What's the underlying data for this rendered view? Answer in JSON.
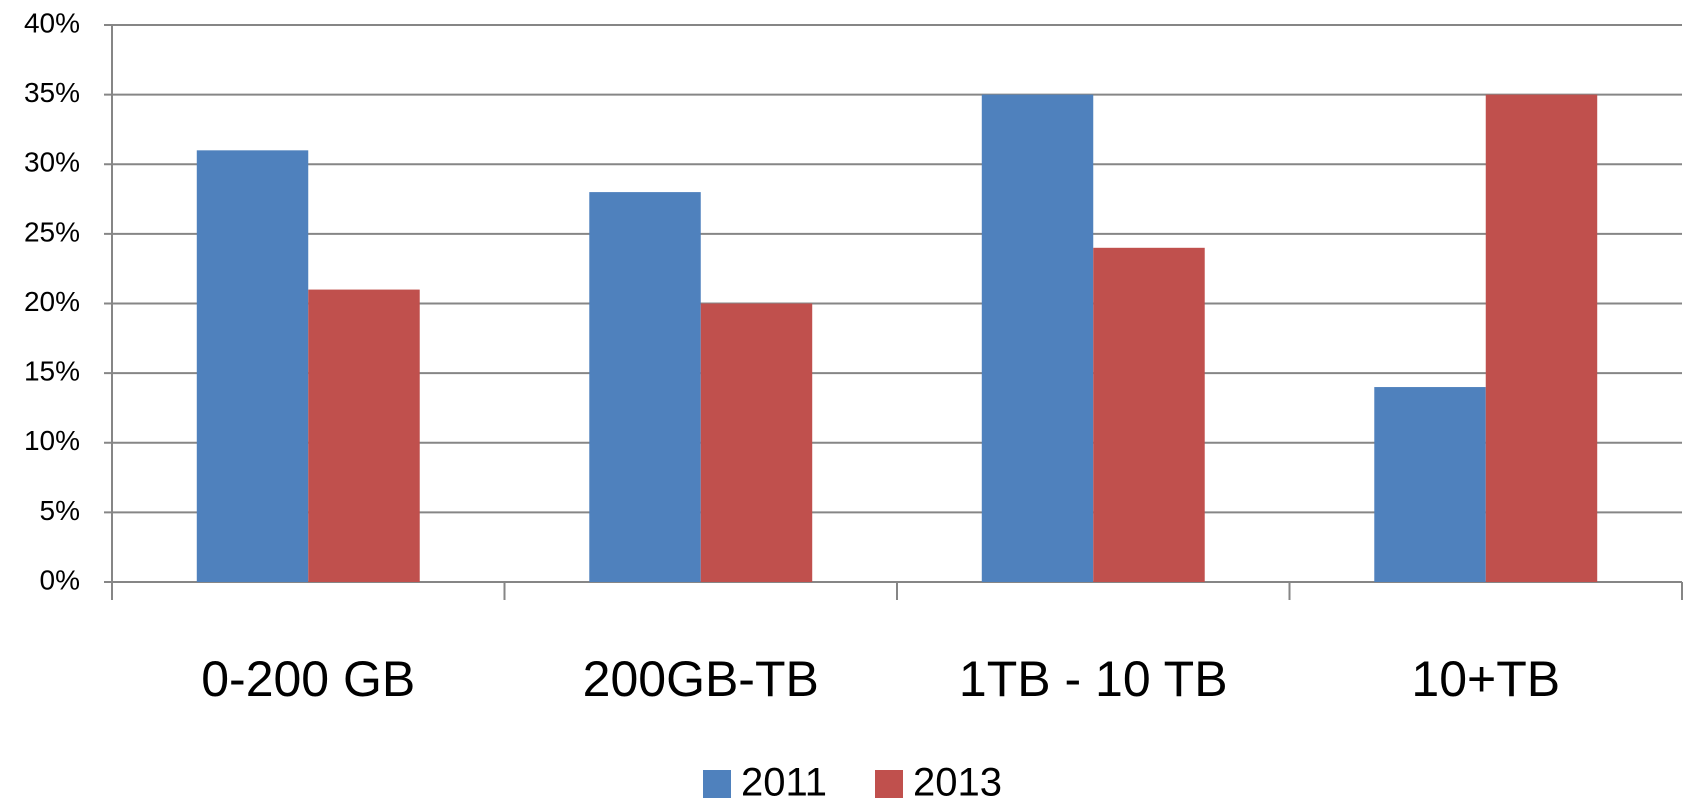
{
  "chart_data": {
    "type": "bar",
    "categories": [
      "0-200 GB",
      "200GB-TB",
      "1TB - 10 TB",
      "10+TB"
    ],
    "series": [
      {
        "name": "2011",
        "color": "#4f81bd",
        "values": [
          31,
          28,
          35,
          14
        ]
      },
      {
        "name": "2013",
        "color": "#c0504d",
        "values": [
          21,
          20,
          24,
          35
        ]
      }
    ],
    "ylim": [
      0,
      40
    ],
    "yticks": [
      {
        "value": 0,
        "label": "0%"
      },
      {
        "value": 5,
        "label": "5%"
      },
      {
        "value": 10,
        "label": "10%"
      },
      {
        "value": 15,
        "label": "15%"
      },
      {
        "value": 20,
        "label": "20%"
      },
      {
        "value": 25,
        "label": "25%"
      },
      {
        "value": 30,
        "label": "30%"
      },
      {
        "value": 35,
        "label": "35%"
      },
      {
        "value": 40,
        "label": "40%"
      }
    ],
    "grid": true,
    "legend": "bottom"
  }
}
